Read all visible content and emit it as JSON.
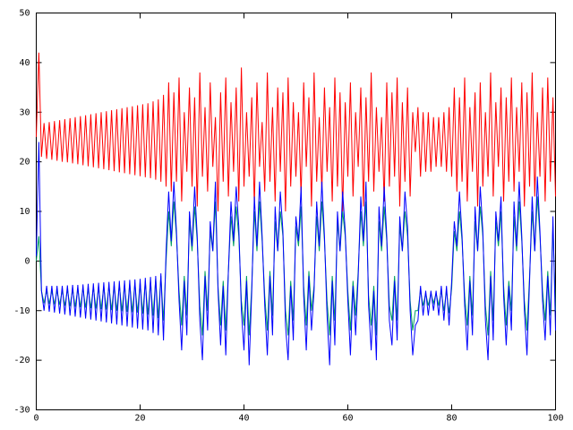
{
  "chart_data": {
    "type": "line",
    "x": [
      0,
      0.5,
      1,
      1.5,
      2,
      2.5,
      3,
      3.5,
      4,
      4.5,
      5,
      5.5,
      6,
      6.5,
      7,
      7.5,
      8,
      8.5,
      9,
      9.5,
      10,
      10.5,
      11,
      11.5,
      12,
      12.5,
      13,
      13.5,
      14,
      14.5,
      15,
      15.5,
      16,
      16.5,
      17,
      17.5,
      18,
      18.5,
      19,
      19.5,
      20,
      20.5,
      21,
      21.5,
      22,
      22.5,
      23,
      23.5,
      24,
      24.5,
      25,
      25.5,
      26,
      26.5,
      27,
      27.5,
      28,
      28.5,
      29,
      29.5,
      30,
      30.5,
      31,
      31.5,
      32,
      32.5,
      33,
      33.5,
      34,
      34.5,
      35,
      35.5,
      36,
      36.5,
      37,
      37.5,
      38,
      38.5,
      39,
      39.5,
      40,
      40.5,
      41,
      41.5,
      42,
      42.5,
      43,
      43.5,
      44,
      44.5,
      45,
      45.5,
      46,
      46.5,
      47,
      47.5,
      48,
      48.5,
      49,
      49.5,
      50,
      50.5,
      51,
      51.5,
      52,
      52.5,
      53,
      53.5,
      54,
      54.5,
      55,
      55.5,
      56,
      56.5,
      57,
      57.5,
      58,
      58.5,
      59,
      59.5,
      60,
      60.5,
      61,
      61.5,
      62,
      62.5,
      63,
      63.5,
      64,
      64.5,
      65,
      65.5,
      66,
      66.5,
      67,
      67.5,
      68,
      68.5,
      69,
      69.5,
      70,
      70.5,
      71,
      71.5,
      72,
      72.5,
      73,
      73.5,
      74,
      74.5,
      75,
      75.5,
      76,
      76.5,
      77,
      77.5,
      78,
      78.5,
      79,
      79.5,
      80,
      80.5,
      81,
      81.5,
      82,
      82.5,
      83,
      83.5,
      84,
      84.5,
      85,
      85.5,
      86,
      86.5,
      87,
      87.5,
      88,
      88.5,
      89,
      89.5,
      90,
      90.5,
      91,
      91.5,
      92,
      92.5,
      93,
      93.5,
      94,
      94.5,
      95,
      95.5,
      96,
      96.5,
      97,
      97.5,
      98,
      98.5,
      99,
      99.5,
      100
    ],
    "series": [
      {
        "color": "#ff0000",
        "values": [
          25,
          42,
          21,
          27.8,
          20.6,
          28.0,
          20.4,
          28.2,
          20.2,
          28.4,
          20.0,
          28.6,
          19.9,
          28.8,
          19.7,
          29.0,
          19.5,
          29.2,
          19.3,
          29.4,
          19.1,
          29.6,
          18.9,
          29.8,
          18.7,
          30.0,
          18.5,
          30.2,
          18.3,
          30.4,
          18.1,
          30.6,
          17.9,
          30.8,
          17.7,
          31.0,
          17.5,
          31.2,
          17.3,
          31.4,
          17.1,
          31.6,
          16.9,
          31.8,
          16.7,
          32.2,
          16.4,
          32.6,
          16.0,
          33.5,
          15,
          36,
          14,
          34,
          16,
          37,
          12,
          30,
          18,
          35,
          15,
          33,
          11,
          38,
          17,
          31,
          14,
          36,
          19,
          29,
          10,
          34,
          16,
          37,
          13,
          32,
          18,
          35,
          12,
          39,
          15,
          30,
          17,
          33,
          11,
          36,
          19,
          28,
          14,
          38,
          16,
          31,
          12,
          35,
          18,
          34,
          10,
          37,
          15,
          32,
          17,
          30,
          13,
          36,
          19,
          33,
          11,
          38,
          16,
          29,
          14,
          35,
          18,
          31,
          12,
          37,
          15,
          34,
          10,
          32,
          17,
          36,
          13,
          30,
          19,
          35,
          11,
          33,
          16,
          38,
          14,
          31,
          18,
          29,
          12,
          36,
          15,
          34,
          17,
          37,
          11,
          32,
          16,
          35,
          13,
          30,
          22,
          31,
          17,
          30,
          18,
          30,
          18,
          29,
          19,
          29,
          19,
          30,
          18,
          31,
          17,
          35,
          14,
          33,
          16,
          37,
          12,
          31,
          18,
          34,
          11,
          36,
          15,
          30,
          17,
          38,
          13,
          32,
          19,
          35,
          12,
          33,
          16,
          37,
          14,
          31,
          18,
          36,
          11,
          34,
          15,
          38,
          13,
          30,
          17,
          35,
          12,
          37,
          16,
          33,
          13
        ]
      },
      {
        "color": "#00a060",
        "values": [
          0,
          5,
          -6,
          -8.5,
          -6,
          -8.6,
          -6,
          -8.7,
          -6,
          -8.8,
          -5.9,
          -9,
          -5.8,
          -9.1,
          -5.7,
          -9.2,
          -5.6,
          -9.3,
          -5.5,
          -9.4,
          -5.4,
          -9.5,
          -5.3,
          -9.6,
          -5.2,
          -9.7,
          -5.1,
          -9.8,
          -5,
          -9.9,
          -4.9,
          -10,
          -4.8,
          -10.1,
          -4.7,
          -10.2,
          -4.6,
          -10.3,
          -4.5,
          -10.4,
          -4.4,
          -10.6,
          -4.2,
          -10.8,
          -4,
          -11,
          -3.6,
          -11.5,
          -3,
          -12,
          0,
          10,
          3,
          12,
          5,
          -6,
          -13,
          -3,
          -11,
          8,
          2,
          11,
          4,
          -9,
          -15,
          -2,
          -10,
          6,
          2,
          12,
          -5,
          -13,
          -4,
          -14,
          -2,
          9,
          3,
          11,
          5,
          -8,
          -13,
          -3,
          -15,
          -5,
          10,
          2,
          12,
          4,
          -7,
          -14,
          -2,
          -11,
          8,
          2,
          10,
          5,
          -10,
          -15,
          -4,
          -12,
          7,
          3,
          11,
          -5,
          -13,
          -2,
          -10,
          -5,
          9,
          2,
          12,
          4,
          -8,
          -15,
          -3,
          -12,
          8,
          2,
          10,
          5,
          -6,
          -14,
          -4,
          -11,
          -2,
          10,
          3,
          12,
          -7,
          -13,
          -5,
          -15,
          8,
          2,
          11,
          4,
          -9,
          -12,
          -3,
          -12,
          7,
          2,
          10,
          5,
          -8,
          -14,
          -10,
          -10,
          -6,
          -9,
          -6.5,
          -9,
          -6.5,
          -8.5,
          -6.5,
          -9,
          -6,
          -10,
          -6,
          -10.5,
          -5.5,
          6,
          2,
          10,
          4,
          -7,
          -13,
          -3,
          -11,
          8,
          2,
          11,
          5,
          -9,
          -15,
          -2,
          -12,
          8,
          3,
          10,
          -5,
          -13,
          -4,
          -10,
          9,
          2,
          12,
          4,
          -8,
          -14,
          -3,
          10,
          2,
          13,
          5,
          -6,
          -12,
          -2,
          -11,
          7,
          -10
        ]
      },
      {
        "color": "#0000ff",
        "values": [
          1,
          24,
          -6,
          -10,
          -5,
          -10.2,
          -5,
          -10.4,
          -5,
          -10.6,
          -5,
          -10.8,
          -4.9,
          -11,
          -4.8,
          -11.2,
          -4.8,
          -11.4,
          -4.7,
          -11.6,
          -4.6,
          -11.8,
          -4.5,
          -12,
          -4.4,
          -12.2,
          -4.3,
          -12.4,
          -4.2,
          -12.6,
          -4.1,
          -12.8,
          -4,
          -13,
          -3.9,
          -13.2,
          -3.8,
          -13.4,
          -3.7,
          -13.6,
          -3.6,
          -13.8,
          -3.4,
          -14,
          -3.2,
          -14.5,
          -3,
          -15,
          -2.5,
          -16,
          2,
          14,
          4,
          16,
          6,
          -8,
          -18,
          -4,
          -15,
          10,
          3,
          15,
          5,
          -12,
          -20,
          -3,
          -14,
          8,
          2,
          16,
          -6,
          -17,
          -5,
          -19,
          -2,
          12,
          4,
          15,
          7,
          -10,
          -18,
          -4,
          -21,
          -6,
          13,
          3,
          16,
          5,
          -9,
          -19,
          -3,
          -15,
          11,
          2,
          14,
          6,
          -13,
          -20,
          -5,
          -16,
          9,
          4,
          15,
          -7,
          -18,
          -3,
          -14,
          -6,
          12,
          3,
          16,
          5,
          -11,
          -21,
          -4,
          -17,
          10,
          2,
          14,
          6,
          -8,
          -19,
          -5,
          -15,
          -3,
          13,
          4,
          16,
          -9,
          -18,
          -6,
          -20,
          11,
          3,
          15,
          5,
          -12,
          -17,
          -4,
          -16,
          9,
          2,
          14,
          7,
          -10,
          -19,
          -13,
          -12,
          -5,
          -11,
          -6,
          -11,
          -6,
          -10,
          -6,
          -11,
          -5,
          -12,
          -5,
          -13,
          -4,
          8,
          3,
          14,
          5,
          -9,
          -18,
          -4,
          -15,
          11,
          2,
          15,
          6,
          -12,
          -20,
          -3,
          -16,
          10,
          4,
          13,
          -7,
          -17,
          -5,
          -14,
          12,
          3,
          16,
          5,
          -10,
          -19,
          -4,
          13,
          2,
          17,
          6,
          -8,
          -16,
          -3,
          -15,
          9,
          -14
        ]
      }
    ],
    "xlim": [
      0,
      100
    ],
    "xticks": [
      0,
      20,
      40,
      60,
      80,
      100
    ],
    "ylim": [
      -30,
      50
    ],
    "yticks": [
      -30,
      -20,
      -10,
      0,
      10,
      20,
      30,
      40,
      50
    ]
  }
}
